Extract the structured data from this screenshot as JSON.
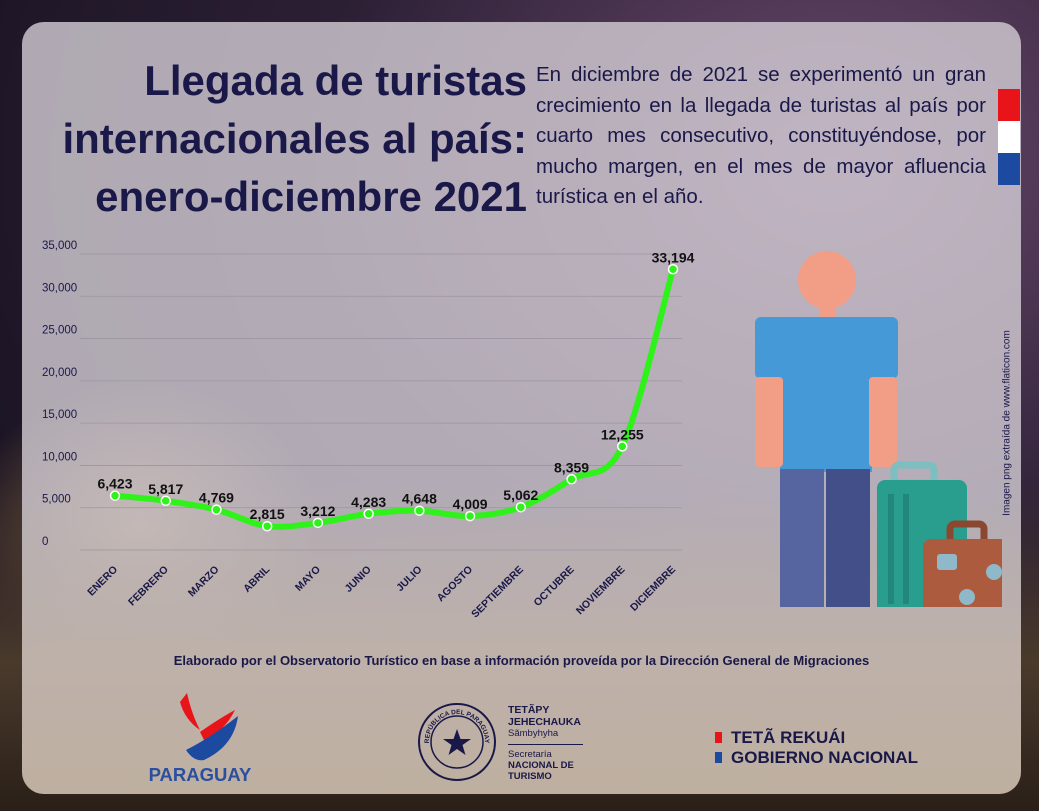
{
  "title_lines": [
    "Llegada de turistas",
    "internacionales al país:",
    "enero-diciembre 2021"
  ],
  "description": "En diciembre de 2021 se experimentó un gran crecimiento en la llegada de turistas al país por cuarto mes consecutivo, constituyéndose, por mucho margen, en el mes de mayor afluencia turística en el año.",
  "image_credit": "Imagen png extraída de www.flaticon.com",
  "source_note": "Elaborado por el Observatorio Turístico en base a información proveída por la Dirección General de Migraciones",
  "flag_colors": [
    "#e8141a",
    "#ffffff",
    "#1b4aa0"
  ],
  "chart_data": {
    "type": "line",
    "title": "Llegada de turistas internacionales al país: enero-diciembre 2021",
    "xlabel": "",
    "ylabel": "",
    "categories": [
      "ENERO",
      "FEBRERO",
      "MARZO",
      "ABRIL",
      "MAYO",
      "JUNIO",
      "JULIO",
      "AGOSTO",
      "SEPTIEMBRE",
      "OCTUBRE",
      "NOVIEMBRE",
      "DICIEMBRE"
    ],
    "series": [
      {
        "name": "Llegada de turistas",
        "values": [
          6423,
          5817,
          4769,
          2815,
          3212,
          4283,
          4648,
          4009,
          5062,
          8359,
          12255,
          33194
        ],
        "color": "#2ef21a"
      }
    ],
    "data_labels": [
      "6,423",
      "5,817",
      "4,769",
      "2,815",
      "3,212",
      "4,283",
      "4,648",
      "4,009",
      "5,062",
      "8,359",
      "12,255",
      "33,194"
    ],
    "ylim": [
      0,
      35000
    ],
    "yticks": [
      0,
      5000,
      10000,
      15000,
      20000,
      25000,
      30000,
      35000
    ],
    "ytick_labels": [
      "0",
      "5,000",
      "10,000",
      "15,000",
      "20,000",
      "25,000",
      "30,000",
      "35,000"
    ],
    "grid": true,
    "legend": "none"
  },
  "logos": {
    "paraguay": "PARAGUAY",
    "seal_text": "REPÚBLICA DEL PARAGUAY",
    "senatur_line1": "TETÃPY",
    "senatur_line2": "JEHECHAUKA",
    "senatur_line3": "Sãmbyhyha",
    "senatur_line4": "Secretaría",
    "senatur_line5": "NACIONAL DE",
    "senatur_line6": "TURISMO",
    "gobierno_line1": "TETÃ REKUÁI",
    "gobierno_line2": "GOBIERNO NACIONAL"
  }
}
